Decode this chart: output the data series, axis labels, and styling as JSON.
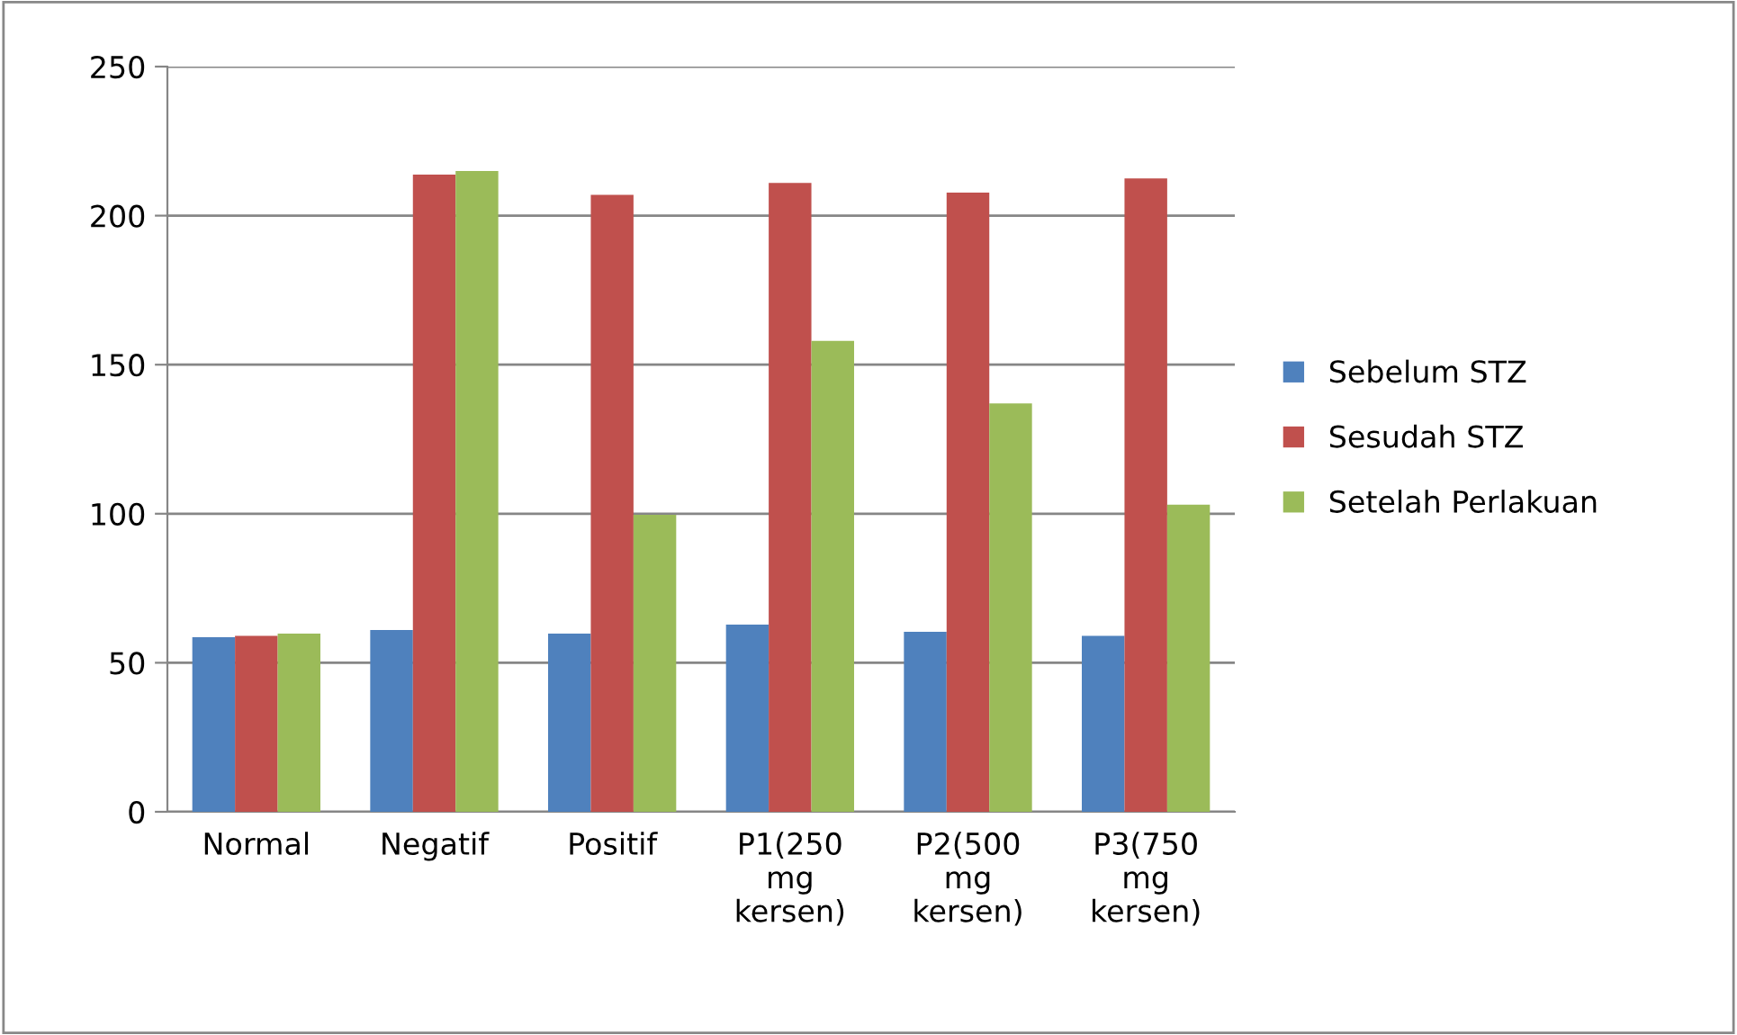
{
  "chart_data": {
    "type": "bar",
    "categories": [
      "Normal",
      "Negatif",
      "Positif",
      "P1(250\nmg\nkersen)",
      "P2(500\nmg\nkersen)",
      "P3(750\nmg\nkersen)"
    ],
    "series": [
      {
        "name": "Sebelum STZ",
        "color": "#4f81bd",
        "values": [
          58.6,
          61,
          59.8,
          62.8,
          60.4,
          59
        ]
      },
      {
        "name": "Sesudah STZ",
        "color": "#c0504d",
        "values": [
          59,
          213.8,
          207,
          211,
          207.7,
          212.5
        ]
      },
      {
        "name": "Setelah Perlakuan",
        "color": "#9bbb59",
        "values": [
          59.8,
          215,
          99.6,
          158,
          137,
          103
        ]
      }
    ],
    "ylim": [
      0,
      250
    ],
    "yticks": [
      0,
      50,
      100,
      150,
      200,
      250
    ],
    "grid": "y",
    "legend": "right"
  }
}
